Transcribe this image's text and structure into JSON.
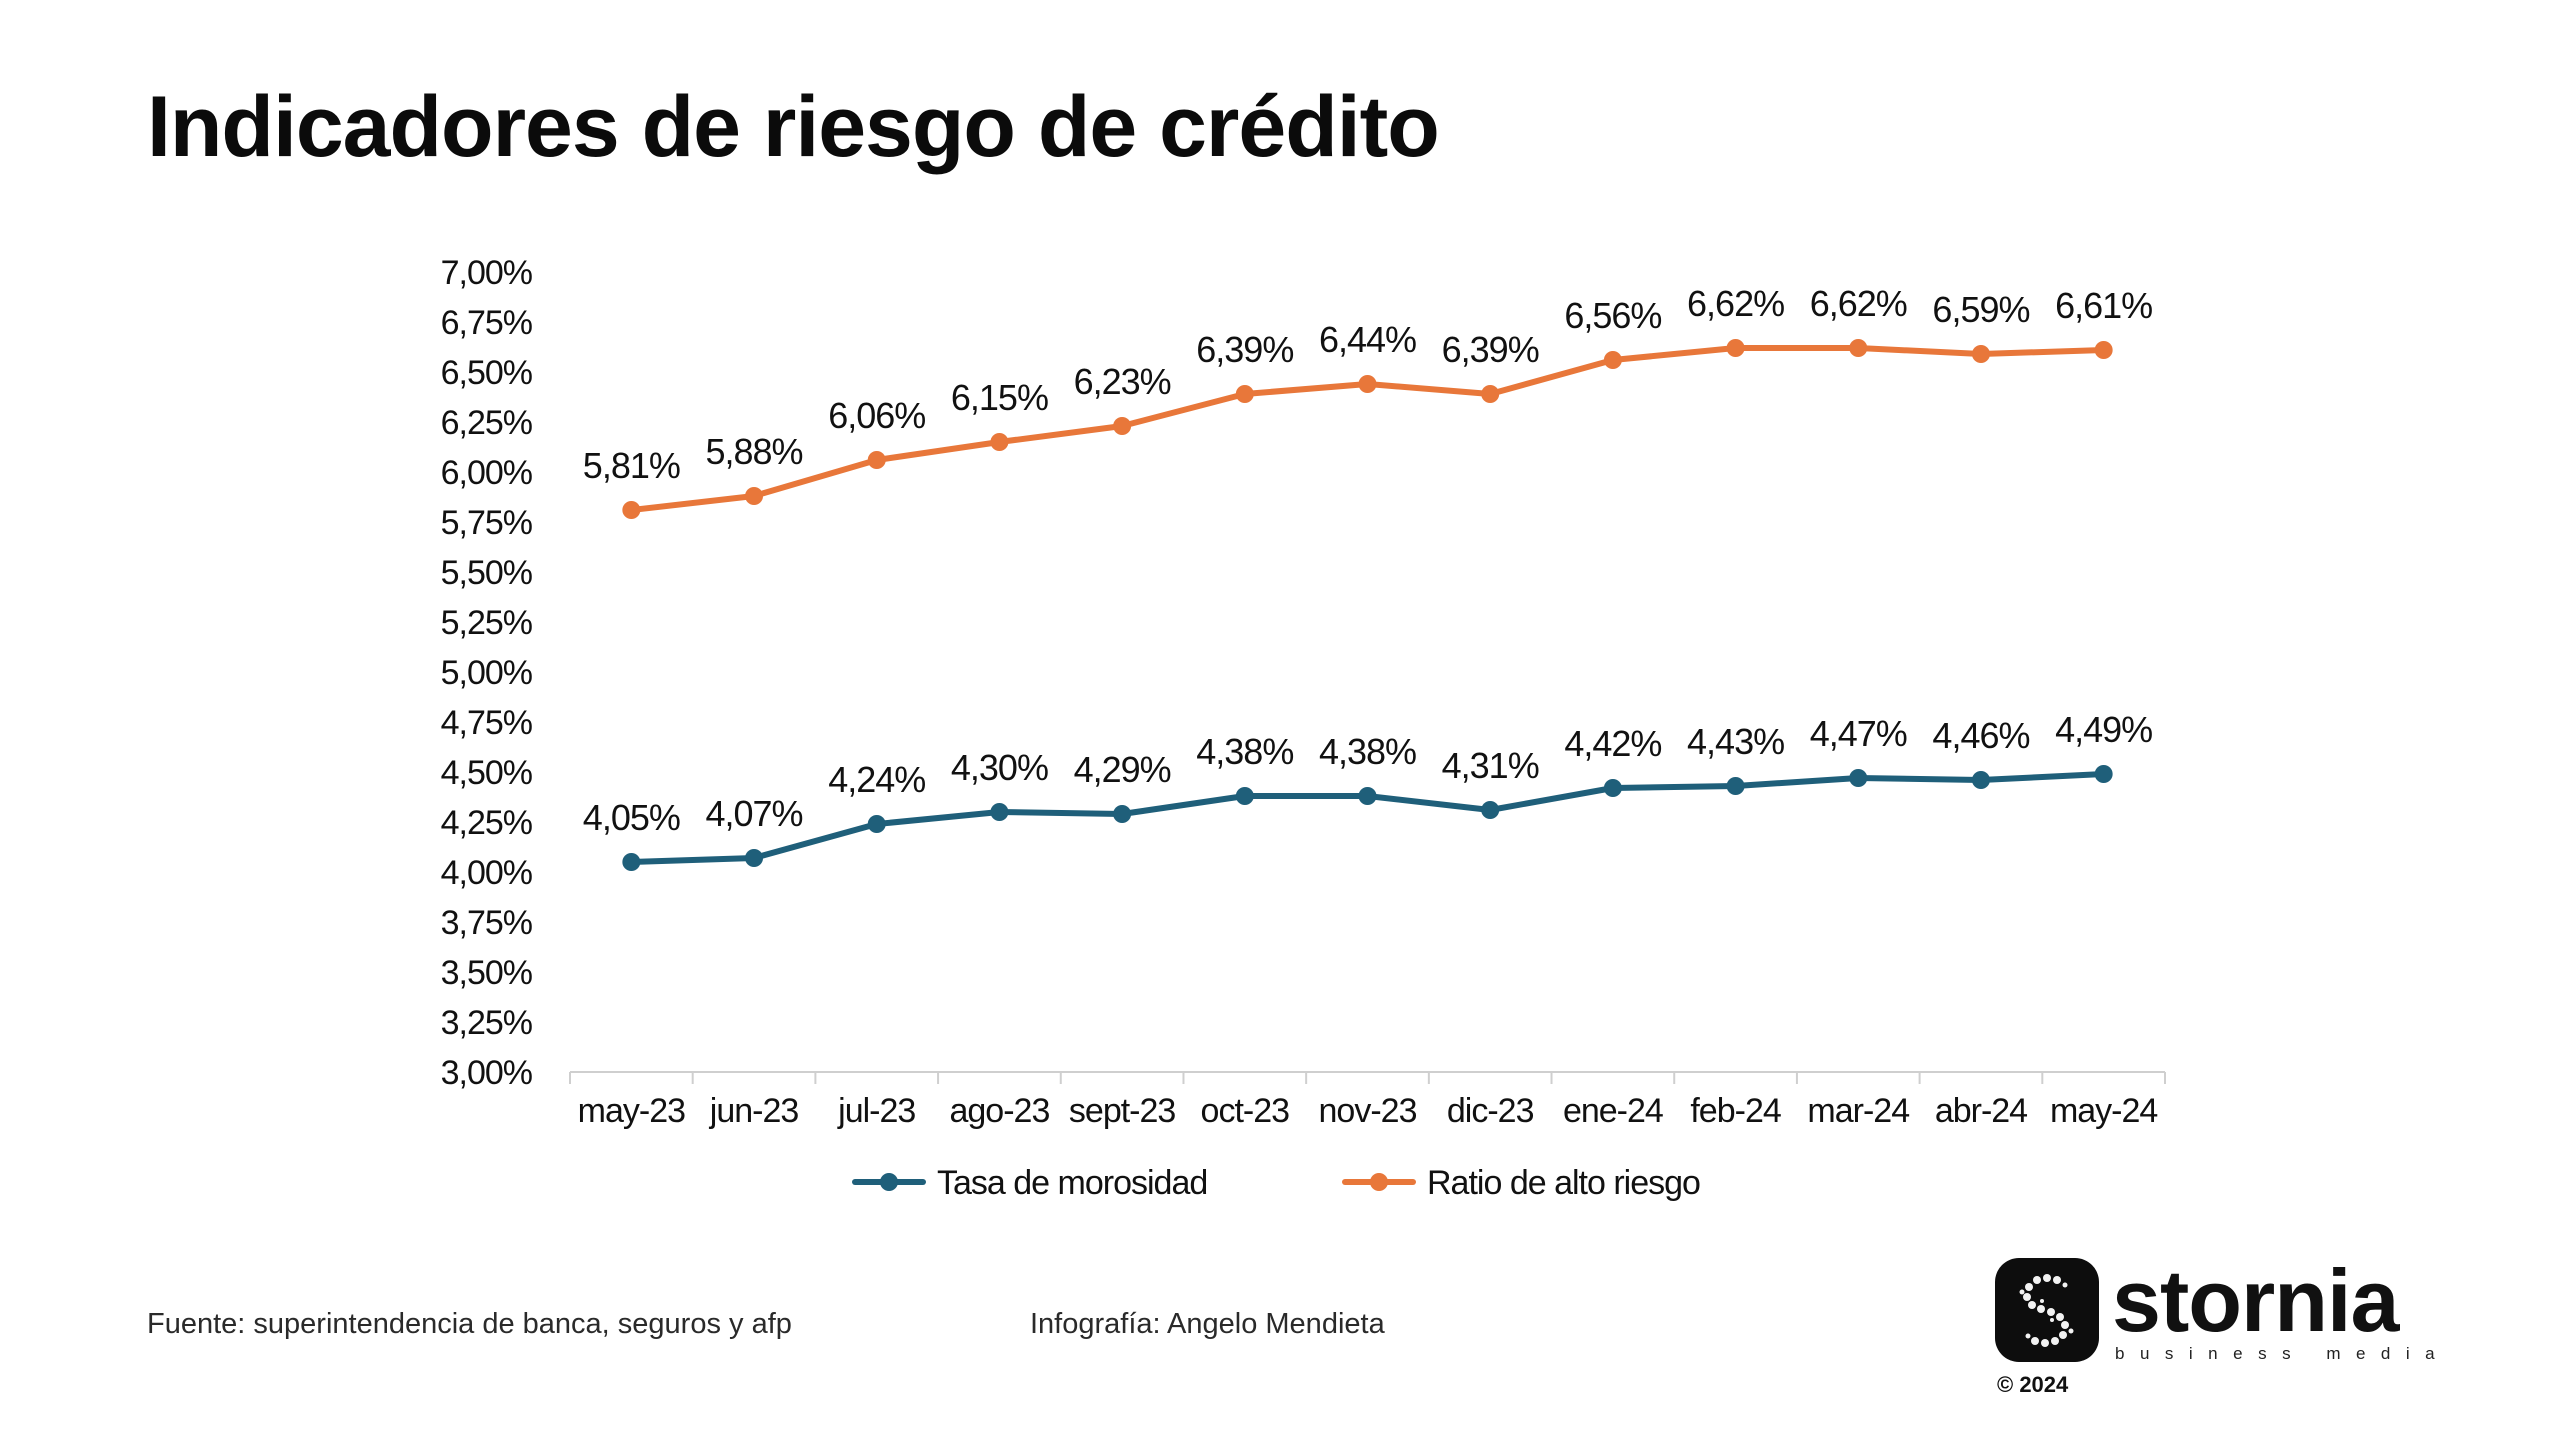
{
  "title": "Indicadores de riesgo de crédito",
  "footer": {
    "source": "Fuente: superintendencia de banca, seguros y afp",
    "credit": "Infografía: Angelo Mendieta"
  },
  "logo": {
    "name": "stornia",
    "tagline": "business media",
    "copyright": "© 2024",
    "icon": "stornia-s-icon"
  },
  "chart_data": {
    "type": "line",
    "categories": [
      "may-23",
      "jun-23",
      "jul-23",
      "ago-23",
      "sept-23",
      "oct-23",
      "nov-23",
      "dic-23",
      "ene-24",
      "feb-24",
      "mar-24",
      "abr-24",
      "may-24"
    ],
    "ylim": [
      3.0,
      7.0
    ],
    "yticks": [
      3.0,
      3.25,
      3.5,
      3.75,
      4.0,
      4.25,
      4.5,
      4.75,
      5.0,
      5.25,
      5.5,
      5.75,
      6.0,
      6.25,
      6.5,
      6.75,
      7.0
    ],
    "ytick_labels": [
      "3,00%",
      "3,25%",
      "3,50%",
      "3,75%",
      "4,00%",
      "4,25%",
      "4,50%",
      "4,75%",
      "5,00%",
      "5,25%",
      "5,50%",
      "5,75%",
      "6,00%",
      "6,25%",
      "6,50%",
      "6,75%",
      "7,00%"
    ],
    "grid": false,
    "legend_position": "bottom",
    "series": [
      {
        "name": "Tasa de morosidad",
        "color": "#1f5f7a",
        "values": [
          4.05,
          4.07,
          4.24,
          4.3,
          4.29,
          4.38,
          4.38,
          4.31,
          4.42,
          4.43,
          4.47,
          4.46,
          4.49
        ],
        "labels": [
          "4,05%",
          "4,07%",
          "4,24%",
          "4,30%",
          "4,29%",
          "4,38%",
          "4,38%",
          "4,31%",
          "4,42%",
          "4,43%",
          "4,47%",
          "4,46%",
          "4,49%"
        ]
      },
      {
        "name": "Ratio de alto riesgo",
        "color": "#e8773a",
        "values": [
          5.81,
          5.88,
          6.06,
          6.15,
          6.23,
          6.39,
          6.44,
          6.39,
          6.56,
          6.62,
          6.62,
          6.59,
          6.61
        ],
        "labels": [
          "5,81%",
          "5,88%",
          "6,06%",
          "6,15%",
          "6,23%",
          "6,39%",
          "6,44%",
          "6,39%",
          "6,56%",
          "6,62%",
          "6,62%",
          "6,59%",
          "6,61%"
        ]
      }
    ]
  }
}
